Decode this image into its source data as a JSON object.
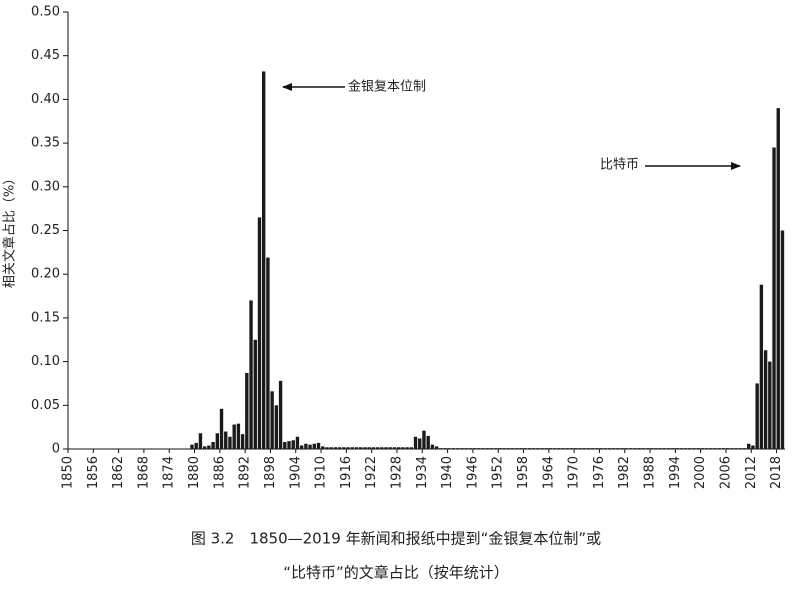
{
  "chart_data": {
    "type": "bar",
    "ylabel": "相关文章占比（%）",
    "caption": [
      "图 3.2　1850—2019 年新闻和报纸中提到“金银复本位制”或",
      "“比特币”的文章占比（按年统计）"
    ],
    "annotations": [
      {
        "text": "金银复本位制",
        "x": 1896
      },
      {
        "text": "比特币",
        "x": 2017
      }
    ],
    "color": "#1a1a1a",
    "x": [
      1850,
      1851,
      1852,
      1853,
      1854,
      1855,
      1856,
      1857,
      1858,
      1859,
      1860,
      1861,
      1862,
      1863,
      1864,
      1865,
      1866,
      1867,
      1868,
      1869,
      1870,
      1871,
      1872,
      1873,
      1874,
      1875,
      1876,
      1877,
      1878,
      1879,
      1880,
      1881,
      1882,
      1883,
      1884,
      1885,
      1886,
      1887,
      1888,
      1889,
      1890,
      1891,
      1892,
      1893,
      1894,
      1895,
      1896,
      1897,
      1898,
      1899,
      1900,
      1901,
      1902,
      1903,
      1904,
      1905,
      1906,
      1907,
      1908,
      1909,
      1910,
      1911,
      1912,
      1913,
      1914,
      1915,
      1916,
      1917,
      1918,
      1919,
      1920,
      1921,
      1922,
      1923,
      1924,
      1925,
      1926,
      1927,
      1928,
      1929,
      1930,
      1931,
      1932,
      1933,
      1934,
      1935,
      1936,
      1937,
      1938,
      1939,
      1940,
      1941,
      1942,
      1943,
      1944,
      1945,
      1946,
      1947,
      1948,
      1949,
      1950,
      1951,
      1952,
      1953,
      1954,
      1955,
      1956,
      1957,
      1958,
      1959,
      1960,
      1961,
      1962,
      1963,
      1964,
      1965,
      1966,
      1967,
      1968,
      1969,
      1970,
      1971,
      1972,
      1973,
      1974,
      1975,
      1976,
      1977,
      1978,
      1979,
      1980,
      1981,
      1982,
      1983,
      1984,
      1985,
      1986,
      1987,
      1988,
      1989,
      1990,
      1991,
      1992,
      1993,
      1994,
      1995,
      1996,
      1997,
      1998,
      1999,
      2000,
      2001,
      2002,
      2003,
      2004,
      2005,
      2006,
      2007,
      2008,
      2009,
      2010,
      2011,
      2012,
      2013,
      2014,
      2015,
      2016,
      2017,
      2018,
      2019
    ],
    "values": [
      0,
      0,
      0,
      0,
      0,
      0,
      0,
      0,
      0,
      0,
      0,
      0,
      0,
      0,
      0,
      0,
      0,
      0,
      0,
      0,
      0,
      0,
      0,
      0,
      0,
      0,
      0,
      0,
      0,
      0.005,
      0.007,
      0.018,
      0.003,
      0.004,
      0.008,
      0.018,
      0.046,
      0.02,
      0.014,
      0.028,
      0.029,
      0.017,
      0.087,
      0.17,
      0.125,
      0.265,
      0.432,
      0.219,
      0.066,
      0.05,
      0.078,
      0.008,
      0.009,
      0.01,
      0.014,
      0.004,
      0.006,
      0.005,
      0.006,
      0.007,
      0.003,
      0.002,
      0.002,
      0.002,
      0.002,
      0.002,
      0.002,
      0.002,
      0.002,
      0.002,
      0.002,
      0.002,
      0.002,
      0.002,
      0.002,
      0.002,
      0.002,
      0.002,
      0.002,
      0.002,
      0.002,
      0.002,
      0.014,
      0.012,
      0.021,
      0.015,
      0.005,
      0.003,
      0.001,
      0.001,
      0.001,
      0.001,
      0.001,
      0.001,
      0.001,
      0.001,
      0.001,
      0.001,
      0.001,
      0.001,
      0.001,
      0.001,
      0.001,
      0.001,
      0.001,
      0.001,
      0.001,
      0.001,
      0.001,
      0.001,
      0.001,
      0.001,
      0.001,
      0.001,
      0.001,
      0.001,
      0.001,
      0.001,
      0.001,
      0.001,
      0.001,
      0.001,
      0.001,
      0.001,
      0.001,
      0.001,
      0.001,
      0.001,
      0.001,
      0.001,
      0.001,
      0.001,
      0.001,
      0.001,
      0.001,
      0.001,
      0.001,
      0.001,
      0.001,
      0.001,
      0.001,
      0.001,
      0.001,
      0.001,
      0.001,
      0.001,
      0.001,
      0.001,
      0.001,
      0.001,
      0.001,
      0.001,
      0.001,
      0.001,
      0.001,
      0.001,
      0.001,
      0.001,
      0.001,
      0.001,
      0.001,
      0.006,
      0.004,
      0.075,
      0.188,
      0.113,
      0.1,
      0.345,
      0.39,
      0.25
    ],
    "xlim": [
      1850,
      2020
    ],
    "xticks": [
      1850,
      1856,
      1862,
      1868,
      1874,
      1880,
      1886,
      1892,
      1898,
      1904,
      1910,
      1916,
      1922,
      1928,
      1934,
      1940,
      1946,
      1952,
      1958,
      1964,
      1970,
      1976,
      1982,
      1988,
      1994,
      2000,
      2006,
      2012,
      2018
    ],
    "ylim": [
      0,
      0.5
    ],
    "yticks": [
      0,
      0.05,
      {
        "value": 0.1,
        "label": "0.10"
      },
      0.15,
      {
        "value": 0.2,
        "label": "0.20"
      },
      0.25,
      {
        "value": 0.3,
        "label": "0.30"
      },
      0.35,
      {
        "value": 0.4,
        "label": "0.40"
      },
      0.45,
      {
        "value": 0.5,
        "label": "0.50"
      }
    ]
  }
}
